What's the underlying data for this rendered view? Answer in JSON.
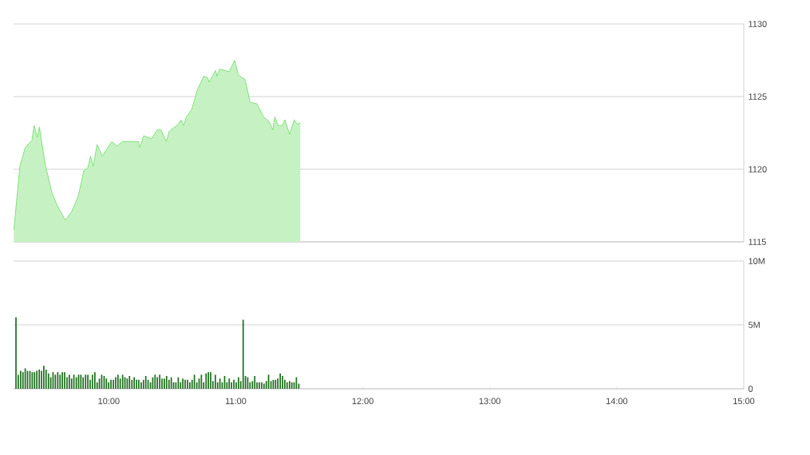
{
  "chart_data": [
    {
      "type": "area",
      "color": "#80e27a",
      "grid": "y",
      "tick_labels": "y",
      "xlim": [
        9.25,
        15
      ],
      "ylim": [
        1115,
        1130
      ],
      "yticks": [
        1115,
        1120,
        1125,
        1130
      ],
      "x": [
        9.252,
        9.3,
        9.342,
        9.395,
        9.412,
        9.437,
        9.453,
        9.5,
        9.552,
        9.594,
        9.657,
        9.709,
        9.761,
        9.803,
        9.835,
        9.856,
        9.877,
        9.908,
        9.95,
        9.992,
        10.024,
        10.066,
        10.107,
        10.192,
        10.233,
        10.244,
        10.275,
        10.338,
        10.38,
        10.412,
        10.453,
        10.475,
        10.547,
        10.568,
        10.59,
        10.61,
        10.653,
        10.695,
        10.747,
        10.778,
        10.789,
        10.841,
        10.852,
        10.873,
        10.915,
        10.947,
        10.992,
        11.019,
        11.051,
        11.072,
        11.113,
        11.166,
        11.219,
        11.261,
        11.292,
        11.307,
        11.334,
        11.365,
        11.386,
        11.424,
        11.459,
        11.481,
        11.508
      ],
      "values": [
        1115.8,
        1120.2,
        1121.5,
        1122.0,
        1123.0,
        1122.2,
        1122.9,
        1120.3,
        1118.4,
        1117.5,
        1116.5,
        1117.1,
        1118.2,
        1119.9,
        1120.1,
        1120.9,
        1120.2,
        1121.7,
        1120.9,
        1121.5,
        1121.9,
        1121.6,
        1121.9,
        1121.9,
        1121.9,
        1121.5,
        1122.3,
        1122.1,
        1122.7,
        1122.7,
        1121.9,
        1122.6,
        1123.1,
        1123.4,
        1123.0,
        1123.6,
        1124.1,
        1125.4,
        1126.4,
        1126.3,
        1126.0,
        1126.8,
        1126.4,
        1126.9,
        1126.8,
        1126.7,
        1127.5,
        1126.5,
        1126.3,
        1126.2,
        1124.6,
        1124.5,
        1123.6,
        1123.3,
        1122.7,
        1123.6,
        1123.0,
        1123.0,
        1123.4,
        1122.4,
        1123.4,
        1123.1,
        1123.2
      ]
    },
    {
      "type": "bar",
      "color": "#1b6e1b",
      "grid": "y",
      "xlim": [
        9.25,
        15
      ],
      "ylim": [
        0,
        10
      ],
      "xticks": [
        {
          "value": 10,
          "label": "10:00"
        },
        {
          "value": 11,
          "label": "11:00"
        },
        {
          "value": 12,
          "label": "12:00"
        },
        {
          "value": 13,
          "label": "13:00"
        },
        {
          "value": 14,
          "label": "14:00"
        },
        {
          "value": 15,
          "label": "15:00"
        }
      ],
      "yticks": [
        {
          "value": 0,
          "label": "0"
        },
        {
          "value": 5,
          "label": "5M"
        },
        {
          "value": 10,
          "label": "10M"
        }
      ],
      "x": [
        9.269,
        9.287,
        9.306,
        9.324,
        9.342,
        9.36,
        9.379,
        9.397,
        9.415,
        9.433,
        9.452,
        9.47,
        9.488,
        9.506,
        9.525,
        9.543,
        9.561,
        9.579,
        9.598,
        9.616,
        9.634,
        9.652,
        9.671,
        9.689,
        9.707,
        9.725,
        9.744,
        9.762,
        9.78,
        9.798,
        9.817,
        9.835,
        9.853,
        9.871,
        9.89,
        9.908,
        9.926,
        9.944,
        9.963,
        9.981,
        9.999,
        10.017,
        10.036,
        10.054,
        10.072,
        10.09,
        10.109,
        10.127,
        10.145,
        10.163,
        10.182,
        10.2,
        10.218,
        10.236,
        10.255,
        10.273,
        10.291,
        10.309,
        10.328,
        10.346,
        10.364,
        10.382,
        10.401,
        10.419,
        10.437,
        10.455,
        10.474,
        10.492,
        10.51,
        10.528,
        10.547,
        10.565,
        10.583,
        10.601,
        10.62,
        10.638,
        10.656,
        10.674,
        10.693,
        10.711,
        10.729,
        10.747,
        10.766,
        10.784,
        10.802,
        10.82,
        10.839,
        10.857,
        10.875,
        10.893,
        10.912,
        10.93,
        10.948,
        10.966,
        10.985,
        11.003,
        11.021,
        11.039,
        11.058,
        11.076,
        11.094,
        11.112,
        11.131,
        11.149,
        11.167,
        11.185,
        11.204,
        11.222,
        11.24,
        11.258,
        11.277,
        11.295,
        11.313,
        11.331,
        11.35,
        11.368,
        11.386,
        11.404,
        11.423,
        11.441,
        11.459,
        11.477,
        11.496
      ],
      "values": [
        5.6,
        1.1,
        1.4,
        1.3,
        1.6,
        1.4,
        1.4,
        1.3,
        1.3,
        1.4,
        1.5,
        1.4,
        1.8,
        1.5,
        1.2,
        0.9,
        1.3,
        1.1,
        1.3,
        1.1,
        1.3,
        1.3,
        0.9,
        1.1,
        0.8,
        1.1,
        0.9,
        1.1,
        1.1,
        0.9,
        1.1,
        1.1,
        0.7,
        1.1,
        1.3,
        0.5,
        0.8,
        1.1,
        1.0,
        0.8,
        0.5,
        0.7,
        0.7,
        0.9,
        1.1,
        0.8,
        1.1,
        0.9,
        0.8,
        1.0,
        0.7,
        0.9,
        0.7,
        0.7,
        0.5,
        0.7,
        1.0,
        0.7,
        0.5,
        0.9,
        1.1,
        0.9,
        1.1,
        0.8,
        0.8,
        1.0,
        0.7,
        0.9,
        0.5,
        0.5,
        0.9,
        0.5,
        0.8,
        0.7,
        0.7,
        0.5,
        0.7,
        1.1,
        0.5,
        0.8,
        1.1,
        0.5,
        1.2,
        1.3,
        1.3,
        0.6,
        1.1,
        0.5,
        0.8,
        0.5,
        1.0,
        0.5,
        0.8,
        0.5,
        0.7,
        0.5,
        0.9,
        0.6,
        5.4,
        1.0,
        0.9,
        0.5,
        0.6,
        1.0,
        0.5,
        0.5,
        0.5,
        0.4,
        0.6,
        1.1,
        0.6,
        0.7,
        0.7,
        0.8,
        1.2,
        1.0,
        0.7,
        0.5,
        0.6,
        0.5,
        0.5,
        0.9,
        0.4
      ]
    }
  ]
}
